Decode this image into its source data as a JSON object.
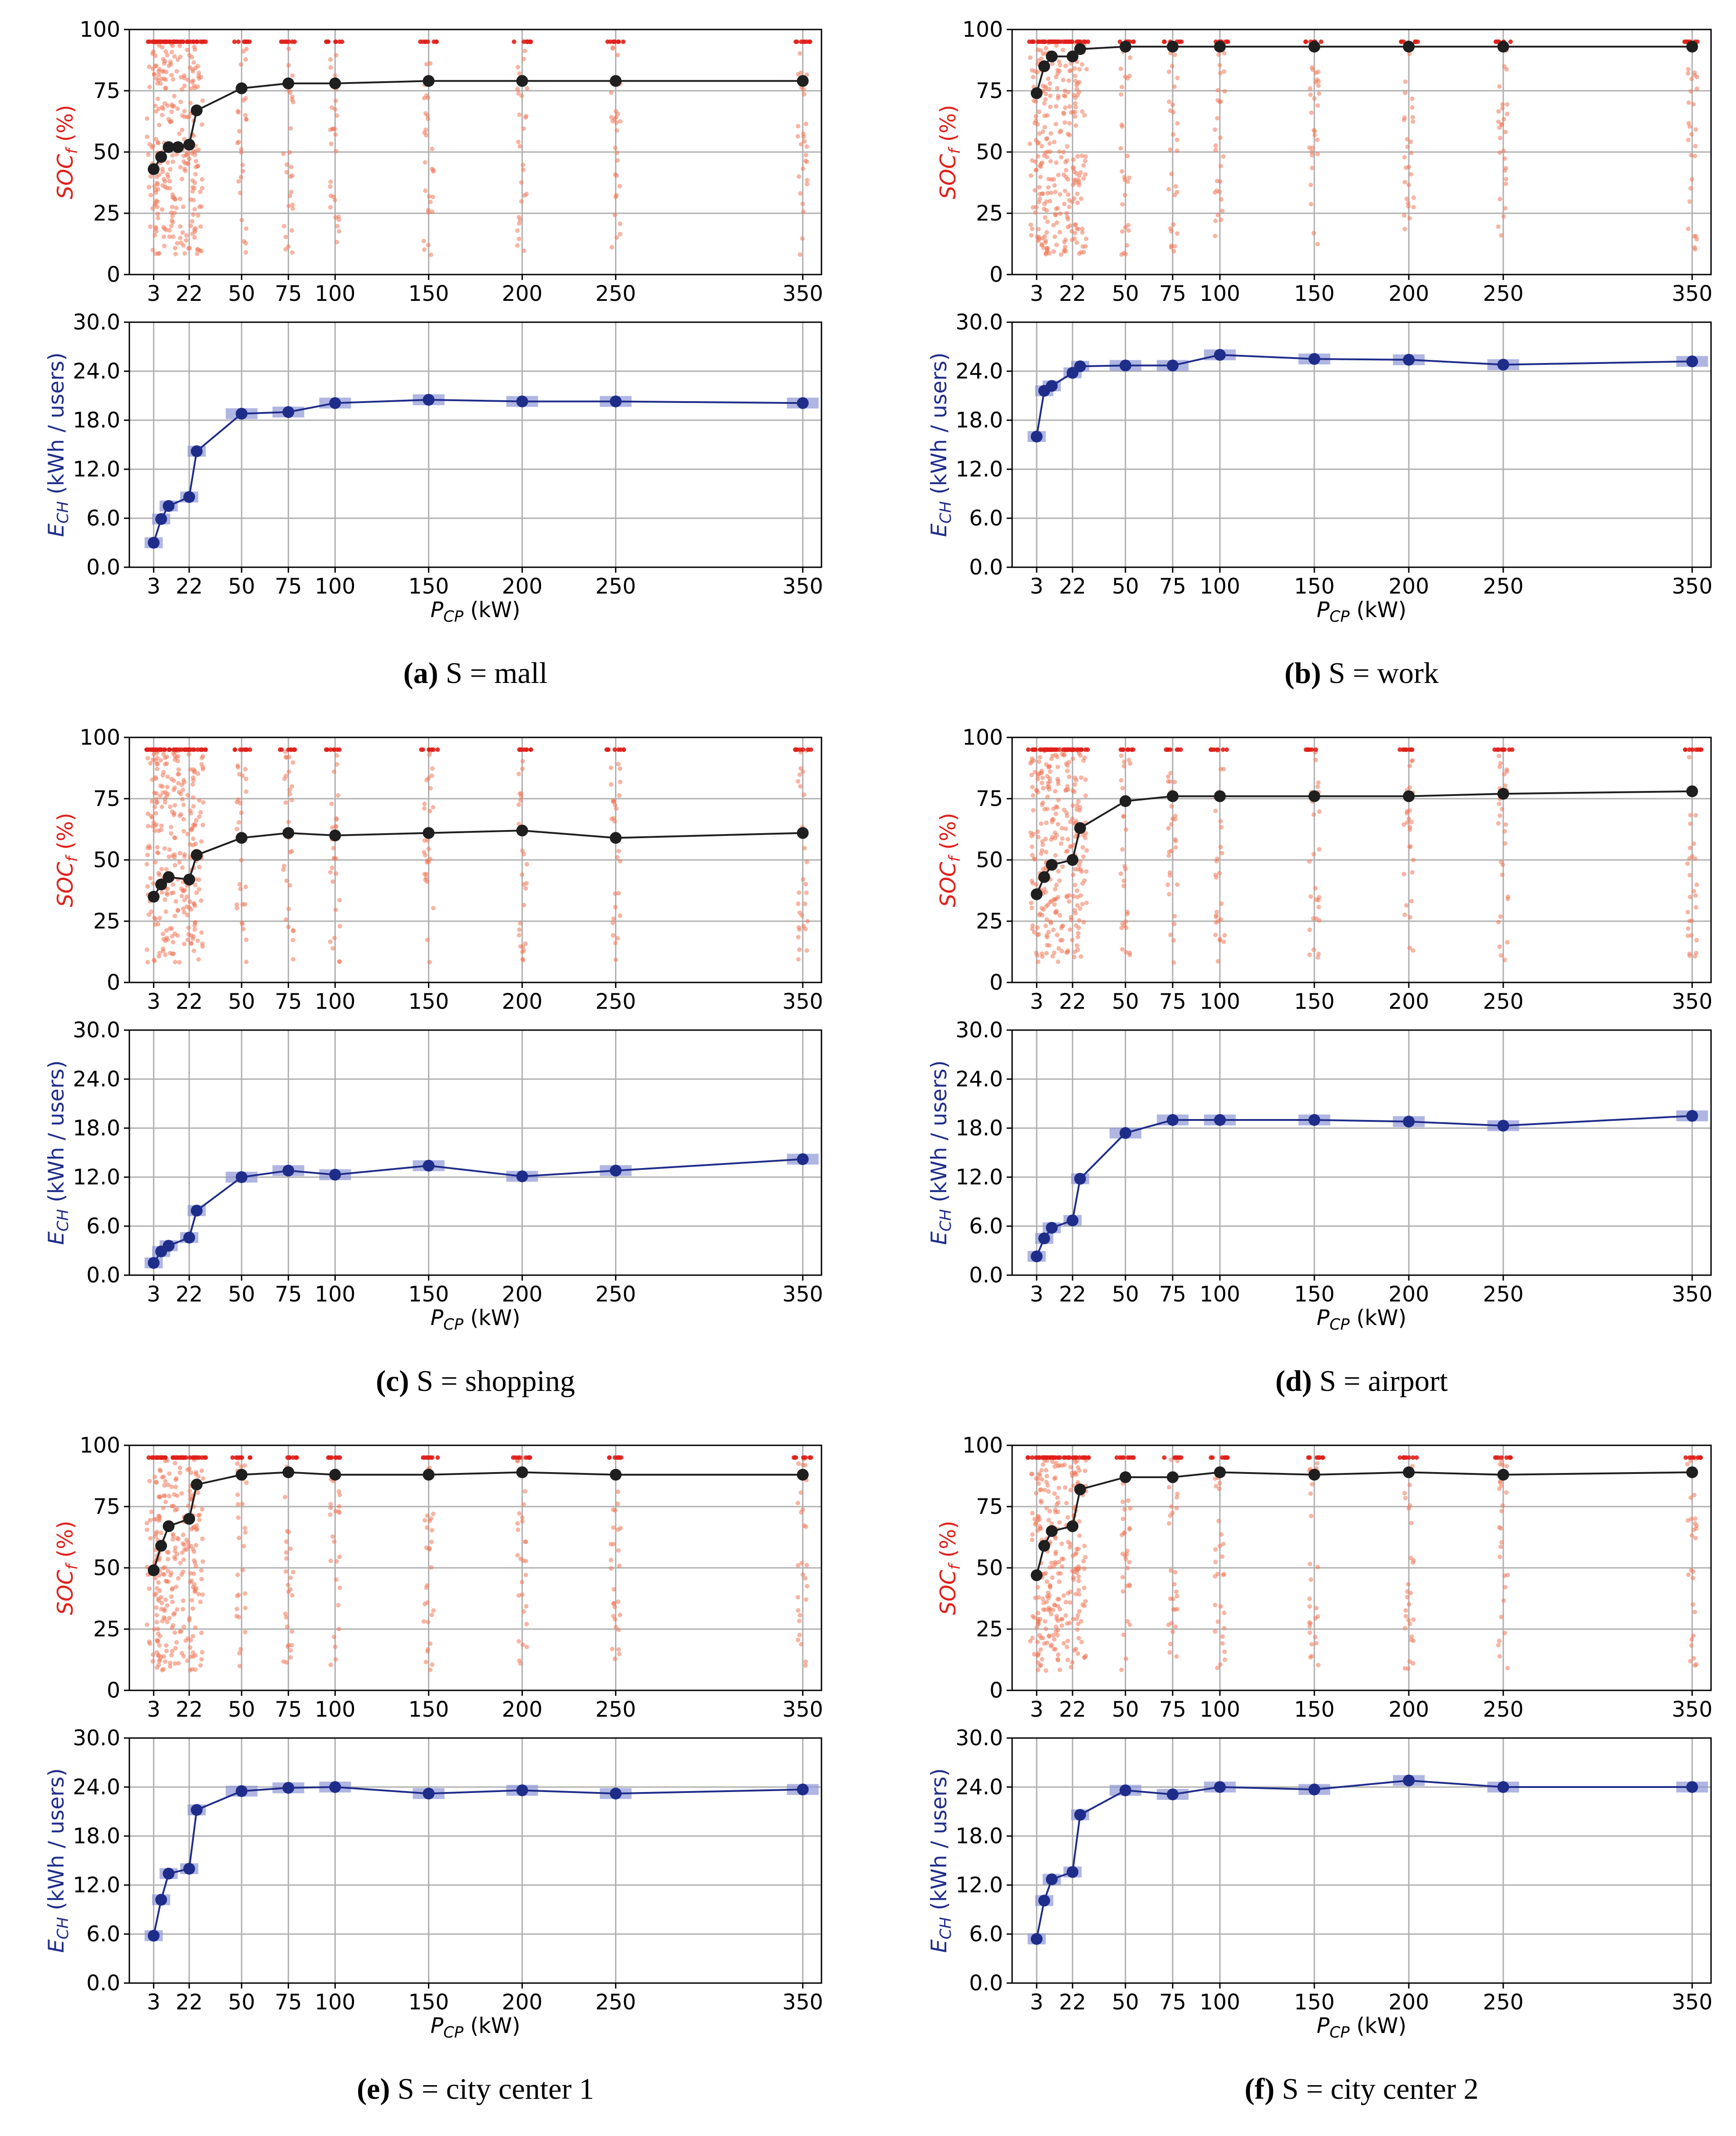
{
  "figure": {
    "x_axis_label": "P",
    "x_axis_label_sub": "CP",
    "x_axis_unit": " (kW)",
    "soc_label_main": "SOC",
    "soc_label_sub": "f",
    "soc_label_unit": " (%)",
    "energy_label_main": "E",
    "energy_label_sub": "CH",
    "energy_label_unit": " (kWh / users)",
    "soc_color": "#e0201b",
    "scatter_color": "#f0795a",
    "soc_mean_color": "#1f1f1f",
    "energy_color": "#1f2d8a",
    "energy_band_color": "#8f97d6",
    "grid_color": "#b0b0b0"
  },
  "chart_data": [
    {
      "panel": "a",
      "caption_letter": "(a)",
      "caption_text": "S = mall",
      "type": "line",
      "x_ticks": [
        3,
        22,
        50,
        75,
        100,
        150,
        200,
        250,
        350
      ],
      "soc": {
        "ylim": [
          0,
          100
        ],
        "y_ticks": [
          0,
          25,
          50,
          75,
          100
        ],
        "x": [
          3,
          7,
          11,
          16,
          22,
          26,
          50,
          75,
          100,
          150,
          200,
          250,
          350
        ],
        "mean": [
          43,
          48,
          52,
          52,
          53,
          67,
          76,
          78,
          78,
          79,
          79,
          79,
          79
        ]
      },
      "energy": {
        "ylim": [
          0,
          30
        ],
        "y_ticks": [
          "0.0",
          "6.0",
          "12.0",
          "18.0",
          "24.0",
          "30.0"
        ],
        "x": [
          3,
          7,
          11,
          22,
          26,
          50,
          75,
          100,
          150,
          200,
          250,
          350
        ],
        "mean": [
          3.0,
          5.9,
          7.5,
          8.6,
          14.2,
          18.8,
          19.0,
          20.1,
          20.5,
          20.3,
          20.3,
          20.1
        ]
      }
    },
    {
      "panel": "b",
      "caption_letter": "(b)",
      "caption_text": "S = work",
      "type": "line",
      "x_ticks": [
        3,
        22,
        50,
        75,
        100,
        150,
        200,
        250,
        350
      ],
      "soc": {
        "ylim": [
          0,
          100
        ],
        "y_ticks": [
          0,
          25,
          50,
          75,
          100
        ],
        "x": [
          3,
          7,
          11,
          22,
          26,
          50,
          75,
          100,
          150,
          200,
          250,
          350
        ],
        "mean": [
          74,
          85,
          89,
          89,
          92,
          93,
          93,
          93,
          93,
          93,
          93,
          93
        ]
      },
      "energy": {
        "ylim": [
          0,
          30
        ],
        "y_ticks": [
          "0.0",
          "6.0",
          "12.0",
          "18.0",
          "24.0",
          "30.0"
        ],
        "x": [
          3,
          7,
          11,
          22,
          26,
          50,
          75,
          100,
          150,
          200,
          250,
          350
        ],
        "mean": [
          16.0,
          21.6,
          22.2,
          23.8,
          24.6,
          24.7,
          24.7,
          26.0,
          25.5,
          25.4,
          24.8,
          25.2
        ]
      }
    },
    {
      "panel": "c",
      "caption_letter": "(c)",
      "caption_text": "S = shopping",
      "type": "line",
      "x_ticks": [
        3,
        22,
        50,
        75,
        100,
        150,
        200,
        250,
        350
      ],
      "soc": {
        "ylim": [
          0,
          100
        ],
        "y_ticks": [
          0,
          25,
          50,
          75,
          100
        ],
        "x": [
          3,
          7,
          11,
          22,
          26,
          50,
          75,
          100,
          150,
          200,
          250,
          350
        ],
        "mean": [
          35,
          40,
          43,
          42,
          52,
          59,
          61,
          60,
          61,
          62,
          59,
          61
        ]
      },
      "energy": {
        "ylim": [
          0,
          30
        ],
        "y_ticks": [
          "0.0",
          "6.0",
          "12.0",
          "18.0",
          "24.0",
          "30.0"
        ],
        "x": [
          3,
          7,
          11,
          22,
          26,
          50,
          75,
          100,
          150,
          200,
          250,
          350
        ],
        "mean": [
          1.5,
          2.9,
          3.6,
          4.6,
          7.9,
          12.0,
          12.8,
          12.3,
          13.4,
          12.1,
          12.8,
          14.2
        ]
      }
    },
    {
      "panel": "d",
      "caption_letter": "(d)",
      "caption_text": "S = airport",
      "type": "line",
      "x_ticks": [
        3,
        22,
        50,
        75,
        100,
        150,
        200,
        250,
        350
      ],
      "soc": {
        "ylim": [
          0,
          100
        ],
        "y_ticks": [
          0,
          25,
          50,
          75,
          100
        ],
        "x": [
          3,
          7,
          11,
          22,
          26,
          50,
          75,
          100,
          150,
          200,
          250,
          350
        ],
        "mean": [
          36,
          43,
          48,
          50,
          63,
          74,
          76,
          76,
          76,
          76,
          77,
          78
        ]
      },
      "energy": {
        "ylim": [
          0,
          30
        ],
        "y_ticks": [
          "0.0",
          "6.0",
          "12.0",
          "18.0",
          "24.0",
          "30.0"
        ],
        "x": [
          3,
          7,
          11,
          22,
          26,
          50,
          75,
          100,
          150,
          200,
          250,
          350
        ],
        "mean": [
          2.3,
          4.5,
          5.8,
          6.7,
          11.8,
          17.4,
          19.0,
          19.0,
          19.0,
          18.8,
          18.3,
          19.5
        ]
      }
    },
    {
      "panel": "e",
      "caption_letter": "(e)",
      "caption_text": "S = city center 1",
      "type": "line",
      "x_ticks": [
        3,
        22,
        50,
        75,
        100,
        150,
        200,
        250,
        350
      ],
      "soc": {
        "ylim": [
          0,
          100
        ],
        "y_ticks": [
          0,
          25,
          50,
          75,
          100
        ],
        "x": [
          3,
          7,
          11,
          22,
          26,
          50,
          75,
          100,
          150,
          200,
          250,
          350
        ],
        "mean": [
          49,
          59,
          67,
          70,
          84,
          88,
          89,
          88,
          88,
          89,
          88,
          88
        ]
      },
      "energy": {
        "ylim": [
          0,
          30
        ],
        "y_ticks": [
          "0.0",
          "6.0",
          "12.0",
          "18.0",
          "24.0",
          "30.0"
        ],
        "x": [
          3,
          7,
          11,
          22,
          26,
          50,
          75,
          100,
          150,
          200,
          250,
          350
        ],
        "mean": [
          5.8,
          10.2,
          13.4,
          14.0,
          21.2,
          23.5,
          23.9,
          24.0,
          23.2,
          23.6,
          23.2,
          23.7
        ]
      }
    },
    {
      "panel": "f",
      "caption_letter": "(f)",
      "caption_text": "S = city center 2",
      "type": "line",
      "x_ticks": [
        3,
        22,
        50,
        75,
        100,
        150,
        200,
        250,
        350
      ],
      "soc": {
        "ylim": [
          0,
          100
        ],
        "y_ticks": [
          0,
          25,
          50,
          75,
          100
        ],
        "x": [
          3,
          7,
          11,
          22,
          26,
          50,
          75,
          100,
          150,
          200,
          250,
          350
        ],
        "mean": [
          47,
          59,
          65,
          67,
          82,
          87,
          87,
          89,
          88,
          89,
          88,
          89
        ]
      },
      "energy": {
        "ylim": [
          0,
          30
        ],
        "y_ticks": [
          "0.0",
          "6.0",
          "12.0",
          "18.0",
          "24.0",
          "30.0"
        ],
        "x": [
          3,
          7,
          11,
          22,
          26,
          50,
          75,
          100,
          150,
          200,
          250,
          350
        ],
        "mean": [
          5.4,
          10.1,
          12.7,
          13.6,
          20.6,
          23.6,
          23.1,
          24.0,
          23.7,
          24.8,
          24.0,
          24.0
        ]
      }
    }
  ]
}
